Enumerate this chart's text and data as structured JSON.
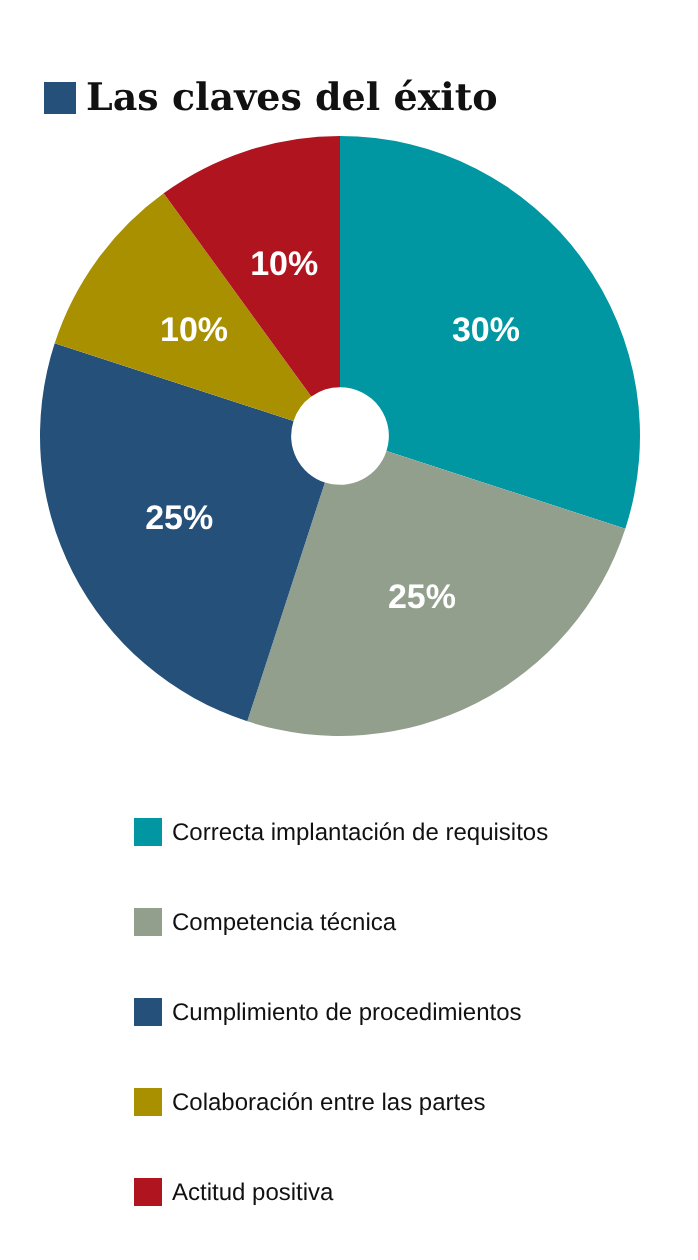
{
  "chart_data": {
    "type": "donut",
    "title": "Las claves del éxito",
    "categories": [
      "Correcta implantación de requisitos",
      "Competencia técnica",
      "Cumplimiento de procedimientos",
      "Colaboración entre las partes",
      "Actitud positiva"
    ],
    "values": [
      30,
      25,
      25,
      10,
      10
    ],
    "value_labels": [
      "30%",
      "25%",
      "25%",
      "10%",
      "10%"
    ],
    "colors": [
      "#0097a3",
      "#929f8c",
      "#24507a",
      "#a99000",
      "#b0141f"
    ],
    "legend": "bottom"
  }
}
